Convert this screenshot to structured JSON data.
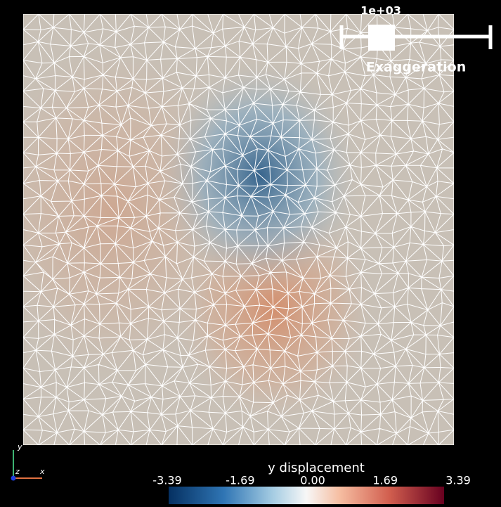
{
  "slider": {
    "value_label": "1e+03",
    "label": "Exaggeration"
  },
  "axes": {
    "x": "x",
    "y": "y",
    "z": "z"
  },
  "colorbar": {
    "title": "y displacement",
    "range": [
      -3.39,
      3.39
    ],
    "ticks": [
      -3.39,
      -1.69,
      {
        "value": 0,
        "label": "0.00"
      },
      1.69,
      3.39
    ]
  }
}
